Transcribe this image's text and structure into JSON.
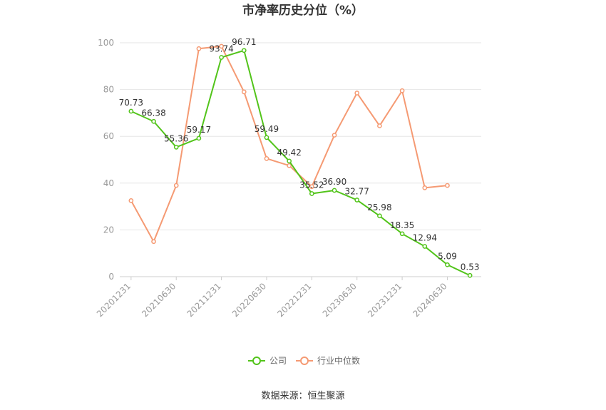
{
  "chart_data": {
    "type": "line",
    "title": "市净率历史分位（%）",
    "x": [
      "20201231",
      "20210331",
      "20210630",
      "20210930",
      "20211231",
      "20220331",
      "20220630",
      "20220930",
      "20221231",
      "20230331",
      "20230630",
      "20230930",
      "20231231",
      "20240331",
      "20240630",
      "20240930"
    ],
    "xtick_labels": [
      "20201231",
      "20210630",
      "20211231",
      "20220630",
      "20221231",
      "20230630",
      "20231231",
      "20240630"
    ],
    "ylim": [
      0,
      100
    ],
    "yticks": [
      0,
      20,
      40,
      60,
      80,
      100
    ],
    "grid": true,
    "legend_position": "bottom",
    "series": [
      {
        "name": "公司",
        "color": "#52c41a",
        "values": [
          70.73,
          66.38,
          55.36,
          59.17,
          93.74,
          96.71,
          59.49,
          49.42,
          35.52,
          36.9,
          32.77,
          25.98,
          18.35,
          12.94,
          5.09,
          0.53
        ],
        "labels": [
          "70.73",
          "66.38",
          "55.36",
          "59.17",
          "93.74",
          "96.71",
          "59.49",
          "49.42",
          "35.52",
          "36.90",
          "32.77",
          "25.98",
          "18.35",
          "12.94",
          "5.09",
          "0.53"
        ]
      },
      {
        "name": "行业中位数",
        "color": "#f59a73",
        "values": [
          32.5,
          15.0,
          39.0,
          97.5,
          98.5,
          79.0,
          50.5,
          47.5,
          38.5,
          60.5,
          78.5,
          64.5,
          79.5,
          38.0,
          39.0,
          null
        ]
      }
    ]
  },
  "footer": {
    "source": "数据来源：恒生聚源"
  }
}
